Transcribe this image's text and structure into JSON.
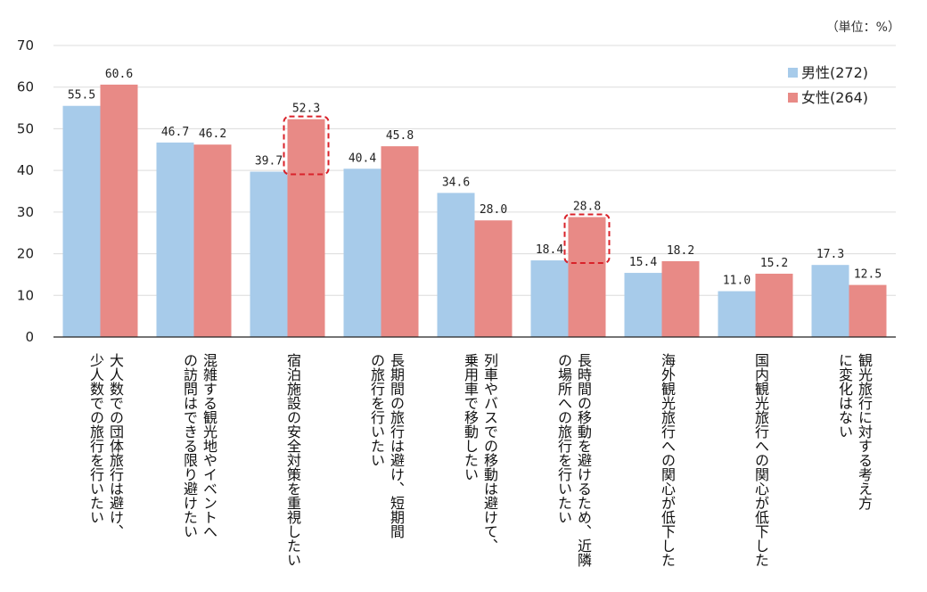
{
  "chart_data": {
    "type": "bar",
    "unit_label": "（単位：%）",
    "ylim": [
      0,
      70
    ],
    "yticks": [
      "0",
      "10",
      "20",
      "30",
      "40",
      "50",
      "60",
      "70"
    ],
    "grid": true,
    "legend_position": "top-right",
    "categories": [
      [
        "大人数での団体旅行は避け、",
        "少人数での旅行を行いたい"
      ],
      [
        "混雑する観光地やイベントへ",
        "の訪問はできる限り避けたい"
      ],
      [
        "宿泊施設の安全対策を重視したい"
      ],
      [
        "長期間の旅行は避け、短期間",
        "の旅行を行いたい"
      ],
      [
        "列車やバスでの移動は避けて、",
        "乗用車で移動したい"
      ],
      [
        "長時間の移動を避けるため、近隣",
        "の場所への旅行を行いたい"
      ],
      [
        "海外観光旅行への関心が低下した"
      ],
      [
        "国内観光旅行への関心が低下した"
      ],
      [
        "観光旅行に対する考え方",
        "に変化はない"
      ]
    ],
    "series": [
      {
        "name": "男性(272)",
        "color": "#a7cbea",
        "values": [
          55.5,
          46.7,
          39.7,
          40.4,
          34.6,
          18.4,
          15.4,
          11.0,
          17.3
        ]
      },
      {
        "name": "女性(264)",
        "color": "#e88a86",
        "values": [
          60.6,
          46.2,
          52.3,
          45.8,
          28.0,
          28.8,
          18.2,
          15.2,
          12.5
        ]
      }
    ],
    "value_labels": [
      [
        "55.5",
        "46.7",
        "39.7",
        "40.4",
        "34.6",
        "18.4",
        "15.4",
        "11.0",
        "17.3"
      ],
      [
        "60.6",
        "46.2",
        "52.3",
        "45.8",
        "28.0",
        "28.8",
        "18.2",
        "15.2",
        "12.5"
      ]
    ],
    "highlights": [
      {
        "category_index": 2,
        "series_index": 1
      },
      {
        "category_index": 5,
        "series_index": 1
      }
    ],
    "highlight_color": "#d9222a"
  }
}
